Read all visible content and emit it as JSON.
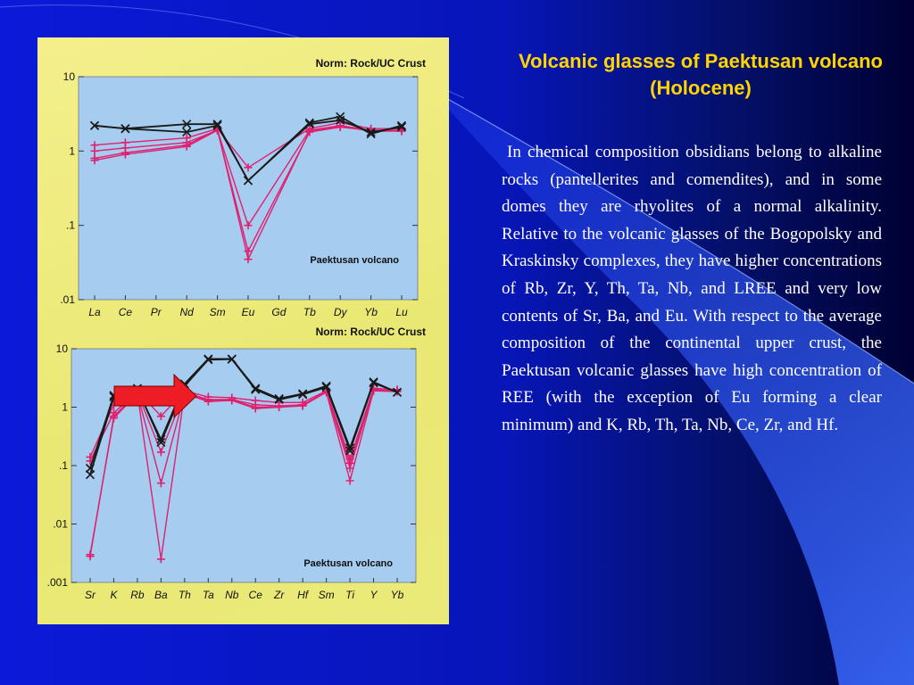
{
  "slide": {
    "title": "Volcanic glasses of Paektusan volcano (Holocene)",
    "body": "In chemical composition obsidians belong to alkaline rocks (pantellerites and comendites), and in some domes they are rhyolites of a normal alkalinity. Relative to the volcanic glasses of the Bogopolsky and Kraskinsky complexes, they have higher concentrations of Rb, Zr, Y, Th, Ta, Nb, and LREE and very low contents of Sr, Ba, and Eu. With respect to the average composition of the continental upper crust, the Paektusan volcanic glasses have high concentration of REE (with the exception of Eu forming a clear minimum) and K, Rb, Th, Ta, Nb, Ce, Zr, and Hf.",
    "colors": {
      "background_dark": "#000033",
      "background_blue": "#0a1ad8",
      "title": "#ffd400",
      "text": "#ffffff"
    }
  },
  "arrow": {
    "color": "#ee1c25",
    "icon": "right-arrow"
  },
  "chart_data": [
    {
      "type": "line",
      "scale": "log",
      "norm_label": "Norm: Rock/UC Crust",
      "annotation": "Paektusan volcano",
      "ylim": [
        0.01,
        10
      ],
      "y_ticks": [
        "10",
        "1",
        ".1",
        ".01"
      ],
      "y_tick_values": [
        10,
        1,
        0.1,
        0.01
      ],
      "categories": [
        "La",
        "Ce",
        "Pr",
        "Nd",
        "Sm",
        "Eu",
        "Gd",
        "Tb",
        "Dy",
        "Yb",
        "Lu"
      ],
      "grid": false,
      "colors": {
        "plot_bg": "#a6cdf0",
        "black_series": "#1a1a1a",
        "pink_series": "#e0206e"
      },
      "series": [
        {
          "marker": "x",
          "color": "black",
          "points": [
            [
              "La",
              2.2
            ],
            [
              "Ce",
              2.0
            ],
            [
              "Nd",
              2.3
            ],
            [
              "Sm",
              2.3
            ],
            [
              "Eu",
              0.4
            ],
            [
              "Tb",
              2.4
            ],
            [
              "Dy",
              2.9
            ],
            [
              "Yb",
              1.7
            ],
            [
              "Lu",
              2.2
            ]
          ]
        },
        {
          "marker": "x",
          "color": "black",
          "points": [
            [
              "La",
              2.2
            ],
            [
              "Ce",
              2.0
            ],
            [
              "Nd",
              1.8
            ],
            [
              "Sm",
              2.2
            ],
            [
              "Eu",
              0.4
            ],
            [
              "Tb",
              2.3
            ],
            [
              "Dy",
              2.6
            ],
            [
              "Yb",
              1.8
            ],
            [
              "Lu",
              2.1
            ]
          ]
        },
        {
          "marker": "+",
          "color": "pink",
          "points": [
            [
              "La",
              1.2
            ],
            [
              "Ce",
              1.3
            ],
            [
              "Nd",
              1.5
            ],
            [
              "Sm",
              2.0
            ],
            [
              "Eu",
              0.6
            ],
            [
              "Tb",
              2.0
            ],
            [
              "Dy",
              2.4
            ],
            [
              "Yb",
              2.0
            ],
            [
              "Lu",
              2.0
            ]
          ]
        },
        {
          "marker": "+",
          "color": "pink",
          "points": [
            [
              "La",
              1.0
            ],
            [
              "Ce",
              1.1
            ],
            [
              "Nd",
              1.3
            ],
            [
              "Sm",
              1.9
            ],
            [
              "Eu",
              0.1
            ],
            [
              "Tb",
              1.9
            ],
            [
              "Dy",
              2.2
            ],
            [
              "Yb",
              1.9
            ],
            [
              "Lu",
              1.9
            ]
          ]
        },
        {
          "marker": "+",
          "color": "pink",
          "points": [
            [
              "La",
              0.75
            ],
            [
              "Ce",
              0.9
            ],
            [
              "Nd",
              1.15
            ],
            [
              "Sm",
              1.9
            ],
            [
              "Eu",
              0.045
            ],
            [
              "Tb",
              1.8
            ],
            [
              "Dy",
              2.1
            ],
            [
              "Yb",
              1.9
            ],
            [
              "Lu",
              1.9
            ]
          ]
        },
        {
          "marker": "+",
          "color": "pink",
          "points": [
            [
              "La",
              0.8
            ],
            [
              "Ce",
              0.95
            ],
            [
              "Nd",
              1.2
            ],
            [
              "Sm",
              1.95
            ],
            [
              "Eu",
              0.035
            ],
            [
              "Tb",
              1.85
            ],
            [
              "Dy",
              2.15
            ],
            [
              "Yb",
              1.85
            ],
            [
              "Lu",
              1.85
            ]
          ]
        }
      ]
    },
    {
      "type": "line",
      "scale": "log",
      "norm_label": "Norm: Rock/UC Crust",
      "annotation": "Paektusan volcano",
      "ylim": [
        0.001,
        10
      ],
      "y_ticks": [
        "10",
        "1",
        ".1",
        ".01",
        ".001"
      ],
      "y_tick_values": [
        10,
        1,
        0.1,
        0.01,
        0.001
      ],
      "categories": [
        "Sr",
        "K",
        "Rb",
        "Ba",
        "Th",
        "Ta",
        "Nb",
        "Ce",
        "Zr",
        "Hf",
        "Sm",
        "Ti",
        "Y",
        "Yb"
      ],
      "grid": false,
      "colors": {
        "plot_bg": "#a6cdf0",
        "black_series": "#1a1a1a",
        "pink_series": "#e0206e"
      },
      "series": [
        {
          "marker": "x",
          "color": "black",
          "points": [
            [
              "Sr",
              0.09
            ],
            [
              "K",
              1.6
            ],
            [
              "Rb",
              2.0
            ],
            [
              "Ba",
              0.28
            ],
            [
              "Th",
              2.5
            ],
            [
              "Ta",
              6.7
            ],
            [
              "Nb",
              6.7
            ],
            [
              "Ce",
              2.1
            ],
            [
              "Zr",
              1.4
            ],
            [
              "Hf",
              1.7
            ],
            [
              "Sm",
              2.3
            ],
            [
              "Ti",
              0.2
            ],
            [
              "Y",
              2.7
            ],
            [
              "Yb",
              1.8
            ]
          ]
        },
        {
          "marker": "x",
          "color": "black",
          "points": [
            [
              "Sr",
              0.07
            ],
            [
              "K",
              1.5
            ],
            [
              "Rb",
              2.1
            ],
            [
              "Ba",
              0.25
            ],
            [
              "Th",
              2.3
            ],
            [
              "Ta",
              6.5
            ],
            [
              "Nb",
              6.6
            ],
            [
              "Ce",
              2.0
            ],
            [
              "Zr",
              1.35
            ],
            [
              "Hf",
              1.65
            ],
            [
              "Sm",
              2.2
            ],
            [
              "Ti",
              0.18
            ],
            [
              "Y",
              2.6
            ],
            [
              "Yb",
              1.8
            ]
          ]
        },
        {
          "marker": "+",
          "color": "pink",
          "points": [
            [
              "Sr",
              0.14
            ],
            [
              "K",
              1.1
            ],
            [
              "Rb",
              1.9
            ],
            [
              "Ba",
              0.7
            ],
            [
              "Th",
              1.9
            ],
            [
              "Ta",
              1.5
            ],
            [
              "Nb",
              1.45
            ],
            [
              "Ce",
              1.3
            ],
            [
              "Zr",
              1.2
            ],
            [
              "Hf",
              1.2
            ],
            [
              "Sm",
              1.9
            ],
            [
              "Ti",
              0.13
            ],
            [
              "Y",
              2.1
            ],
            [
              "Yb",
              2.0
            ]
          ]
        },
        {
          "marker": "+",
          "color": "pink",
          "points": [
            [
              "Sr",
              0.12
            ],
            [
              "K",
              0.8
            ],
            [
              "Rb",
              1.8
            ],
            [
              "Ba",
              0.17
            ],
            [
              "Th",
              1.8
            ],
            [
              "Ta",
              1.35
            ],
            [
              "Nb",
              1.35
            ],
            [
              "Ce",
              1.1
            ],
            [
              "Zr",
              1.05
            ],
            [
              "Hf",
              1.1
            ],
            [
              "Sm",
              1.85
            ],
            [
              "Ti",
              0.09
            ],
            [
              "Y",
              2.0
            ],
            [
              "Yb",
              1.9
            ]
          ]
        },
        {
          "marker": "+",
          "color": "pink",
          "points": [
            [
              "Sr",
              0.003
            ],
            [
              "K",
              0.65
            ],
            [
              "Rb",
              1.7
            ],
            [
              "Ba",
              0.05
            ],
            [
              "Th",
              1.7
            ],
            [
              "Ta",
              1.25
            ],
            [
              "Nb",
              1.3
            ],
            [
              "Ce",
              0.95
            ],
            [
              "Zr",
              1.0
            ],
            [
              "Hf",
              1.05
            ],
            [
              "Sm",
              1.8
            ],
            [
              "Ti",
              0.055
            ],
            [
              "Y",
              1.9
            ],
            [
              "Yb",
              1.85
            ]
          ]
        },
        {
          "marker": "+",
          "color": "pink",
          "points": [
            [
              "Sr",
              0.0028
            ],
            [
              "K",
              0.7
            ],
            [
              "Rb",
              1.75
            ],
            [
              "Ba",
              0.0025
            ],
            [
              "Th",
              1.75
            ],
            [
              "Ta",
              1.3
            ],
            [
              "Nb",
              1.32
            ],
            [
              "Ce",
              1.0
            ],
            [
              "Zr",
              1.02
            ],
            [
              "Hf",
              1.08
            ],
            [
              "Sm",
              1.82
            ],
            [
              "Ti",
              0.11
            ],
            [
              "Y",
              1.95
            ],
            [
              "Yb",
              1.88
            ]
          ]
        }
      ]
    }
  ]
}
